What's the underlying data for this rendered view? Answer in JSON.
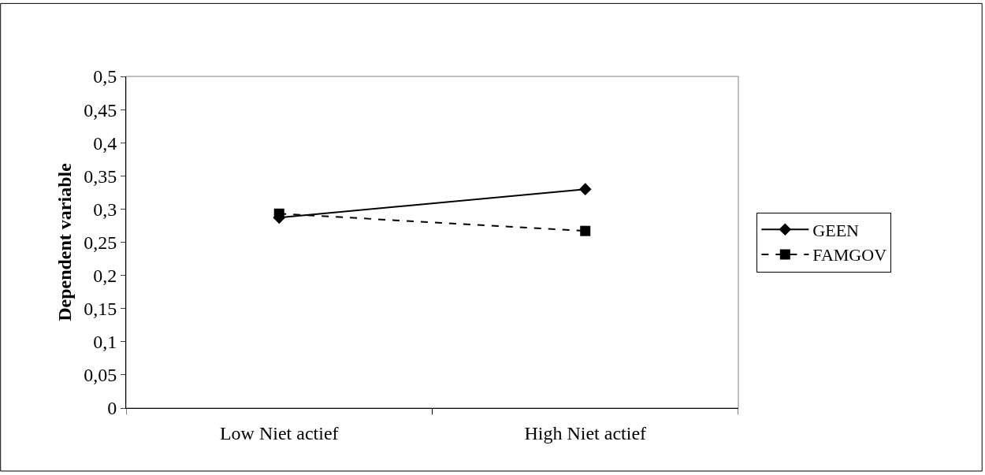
{
  "chart_data": {
    "type": "line",
    "ylabel": "Dependent variable",
    "categories": [
      "Low Niet actief",
      "High Niet actief"
    ],
    "series": [
      {
        "name": "GEEN",
        "color": "#000000",
        "values": [
          0.287,
          0.33
        ],
        "marker": "diamond",
        "line_style": "solid"
      },
      {
        "name": "FAMGOV",
        "color": "#000000",
        "values": [
          0.293,
          0.267
        ],
        "marker": "square",
        "line_style": "dashed"
      }
    ],
    "ylim": [
      0,
      0.5
    ],
    "yticks": [
      {
        "value": 0,
        "label": "0"
      },
      {
        "value": 0.05,
        "label": "0,05"
      },
      {
        "value": 0.1,
        "label": "0,1"
      },
      {
        "value": 0.15,
        "label": "0,15"
      },
      {
        "value": 0.2,
        "label": "0,2"
      },
      {
        "value": 0.25,
        "label": "0,25"
      },
      {
        "value": 0.3,
        "label": "0,3"
      },
      {
        "value": 0.35,
        "label": "0,35"
      },
      {
        "value": 0.4,
        "label": "0,4"
      },
      {
        "value": 0.45,
        "label": "0,45"
      },
      {
        "value": 0.5,
        "label": "0,5"
      }
    ],
    "grid": false,
    "legend": "right"
  }
}
